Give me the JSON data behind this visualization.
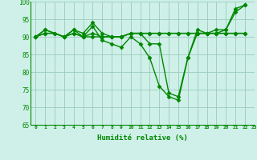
{
  "xlabel": "Humidité relative (%)",
  "xlim": [
    -0.5,
    23
  ],
  "ylim": [
    65,
    100
  ],
  "xticks": [
    0,
    1,
    2,
    3,
    4,
    5,
    6,
    7,
    8,
    9,
    10,
    11,
    12,
    13,
    14,
    15,
    16,
    17,
    18,
    19,
    20,
    21,
    22,
    23
  ],
  "yticks": [
    65,
    70,
    75,
    80,
    85,
    90,
    95,
    100
  ],
  "bg_color": "#cff0e8",
  "grid_color": "#99ccbb",
  "line_color": "#008800",
  "line_width": 1.0,
  "marker": "D",
  "marker_size": 2.5,
  "series": [
    [
      90,
      92,
      null,
      90,
      92,
      90,
      93,
      89,
      88,
      87,
      90,
      88,
      84,
      76,
      73,
      72,
      84,
      91,
      91,
      92,
      92,
      98,
      99
    ],
    [
      90,
      92,
      null,
      90,
      92,
      91,
      94,
      91,
      90,
      90,
      91,
      91,
      88,
      88,
      74,
      73,
      84,
      92,
      91,
      91,
      92,
      97,
      99
    ],
    [
      90,
      91,
      91,
      90,
      91,
      90,
      91,
      90,
      90,
      90,
      91,
      91,
      91,
      91,
      91,
      91,
      91,
      91,
      91,
      91,
      91,
      91,
      91
    ],
    [
      90,
      91,
      91,
      90,
      91,
      90,
      90,
      90,
      90,
      90,
      91,
      91,
      91,
      91,
      91,
      91,
      91,
      91,
      91,
      91,
      91,
      91,
      91
    ]
  ]
}
